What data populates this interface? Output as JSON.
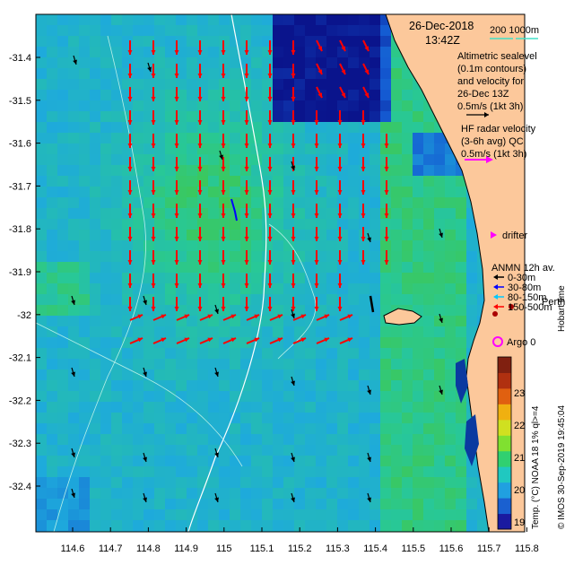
{
  "date_label": "26-Dec-2018",
  "time_label": "13:42Z",
  "scale_label": "200   1000m",
  "altimetric": {
    "line1": "Altimetric sealevel",
    "line2": "(0.1m contours)",
    "line3": "and velocity for",
    "line4": "26-Dec 13Z",
    "line5": "0.5m/s (1kt 3h)"
  },
  "hf_radar": {
    "line1": "HF radar velocity",
    "line2": "(3-6h avg) QC",
    "line3": "0.5m/s (1kt 3h)"
  },
  "drifter_label": "drifter",
  "anmn": {
    "title": "ANMN 12h av.",
    "items": [
      {
        "label": "0-30m",
        "color": "#000000"
      },
      {
        "label": "30-80m",
        "color": "#0000ff"
      },
      {
        "label": "80-150m",
        "color": "#00c8ff"
      },
      {
        "label": "150-500m",
        "color": "#ff0000"
      }
    ]
  },
  "perth_label": "Perth",
  "argo_label": "Argo 0",
  "hobart_label": "Hobart time",
  "colorbar": {
    "title": "Temp. (°C) NOAA 18 1% ql>=4",
    "ticks": [
      "19",
      "20",
      "21",
      "22",
      "23"
    ]
  },
  "credit": "© IMOS 30-Sep-2019 19:45:04",
  "y_ticks": [
    "-31.4",
    "-31.5",
    "-31.6",
    "-31.7",
    "-31.8",
    "-31.9",
    "-32",
    "-32.1",
    "-32.2",
    "-32.3",
    "-32.4"
  ],
  "x_ticks": [
    "114.6",
    "114.7",
    "114.8",
    "114.9",
    "115",
    "115.1",
    "115.2",
    "115.3",
    "115.4",
    "115.5",
    "115.6",
    "115.7",
    "115.8"
  ],
  "colors": {
    "land": "#fcc89b",
    "arrow_red": "#ff0000",
    "arrow_black": "#000000",
    "drifter": "#ff00ff"
  }
}
